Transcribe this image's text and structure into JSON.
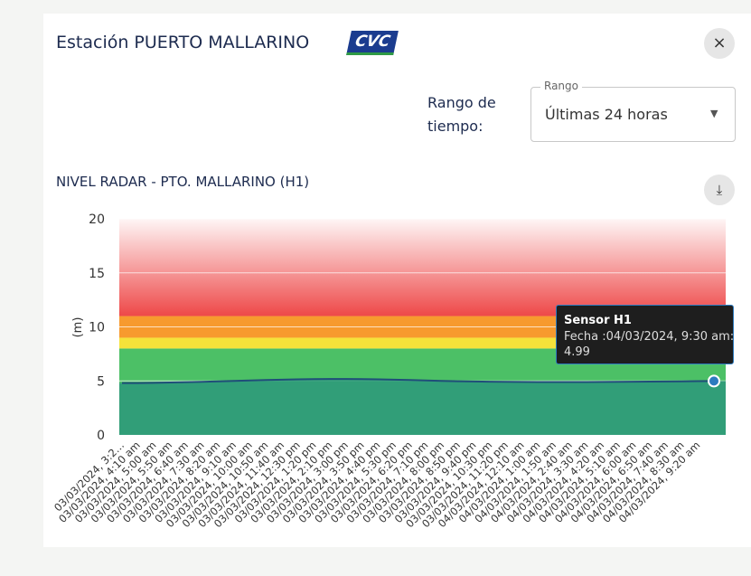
{
  "header": {
    "title": "Estación PUERTO MALLARINO",
    "logo": "CVC",
    "close": "×"
  },
  "range": {
    "label": "Rango de tiempo:",
    "field_label": "Rango",
    "value": "Últimas 24 horas"
  },
  "tooltip": {
    "title": "Sensor H1",
    "date": "Fecha :04/03/2024, 9:30 am:"
  },
  "chart_data": {
    "type": "area",
    "title": "NIVEL RADAR - PTO. MALLARINO (H1)",
    "y_label": "(m)",
    "ylim": [
      0,
      20
    ],
    "yticks": [
      0,
      5,
      10,
      15,
      20
    ],
    "grid": true,
    "line_color": "#1f4e79",
    "area_color": "#2f9a7a",
    "bands": [
      {
        "from": 0,
        "to": 8,
        "color": "#4cc066"
      },
      {
        "from": 8,
        "to": 9,
        "color": "#f5e23a"
      },
      {
        "from": 9,
        "to": 11,
        "color": "#f79a2e"
      },
      {
        "from": 11,
        "to": 20,
        "color": "#ee4848"
      }
    ],
    "categories": [
      "03/03/2024, 3:2…",
      "03/03/2024, 4:10 am",
      "03/03/2024, 5:00 am",
      "03/03/2024, 5:50 am",
      "03/03/2024, 6:40 am",
      "03/03/2024, 7:30 am",
      "03/03/2024, 8:20 am",
      "03/03/2024, 9:10 am",
      "03/03/2024, 10:00 am",
      "03/03/2024, 10:50 am",
      "03/03/2024, 11:40 am",
      "03/03/2024, 12:30 pm",
      "03/03/2024, 1:20 pm",
      "03/03/2024, 2:10 pm",
      "03/03/2024, 3:00 pm",
      "03/03/2024, 3:50 pm",
      "03/03/2024, 4:40 pm",
      "03/03/2024, 5:30 pm",
      "03/03/2024, 6:20 pm",
      "03/03/2024, 7:10 pm",
      "03/03/2024, 8:00 pm",
      "03/03/2024, 8:50 pm",
      "03/03/2024, 9:40 pm",
      "03/03/2024, 10:30 pm",
      "03/03/2024, 11:20 pm",
      "04/03/2024, 12:10 am",
      "04/03/2024, 1:00 am",
      "04/03/2024, 1:50 am",
      "04/03/2024, 2:40 am",
      "04/03/2024, 3:30 am",
      "04/03/2024, 4:20 am",
      "04/03/2024, 5:10 am",
      "04/03/2024, 6:00 am",
      "04/03/2024, 6:50 am",
      "04/03/2024, 7:40 am",
      "04/03/2024, 8:30 am",
      "04/03/2024, 9:20 am",
      null
    ],
    "values": [
      4.8,
      4.8,
      4.82,
      4.85,
      4.88,
      4.92,
      4.96,
      5.0,
      5.04,
      5.08,
      5.12,
      5.15,
      5.17,
      5.18,
      5.18,
      5.17,
      5.15,
      5.12,
      5.08,
      5.04,
      5.0,
      4.97,
      4.95,
      4.93,
      4.92,
      4.91,
      4.9,
      4.9,
      4.9,
      4.9,
      4.91,
      4.92,
      4.93,
      4.94,
      4.95,
      4.96,
      4.98,
      4.99
    ]
  }
}
